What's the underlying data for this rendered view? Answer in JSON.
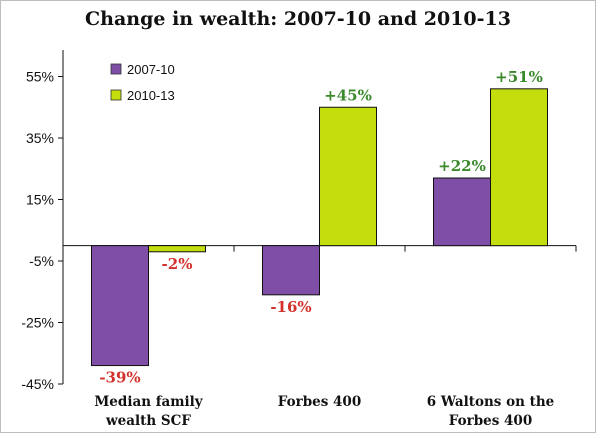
{
  "chart_data": {
    "type": "bar",
    "title": "Change in wealth: 2007-10 and 2010-13",
    "categories": [
      [
        "Median family",
        "wealth SCF"
      ],
      [
        "Forbes 400"
      ],
      [
        "6 Waltons on the",
        "Forbes 400"
      ]
    ],
    "series": [
      {
        "name": "2007-10",
        "values": [
          -39,
          -16,
          22
        ],
        "labels": [
          "-39%",
          "-16%",
          "+22%"
        ],
        "color": "#7f4fa8"
      },
      {
        "name": "2010-13",
        "values": [
          -2,
          45,
          51
        ],
        "labels": [
          "-2%",
          "+45%",
          "+51%"
        ],
        "color": "#c3dd0d"
      }
    ],
    "y_ticks": [
      55,
      35,
      15,
      -5,
      -25,
      -45
    ],
    "y_tick_labels": [
      "55%",
      "35%",
      "15%",
      "-5%",
      "-25%",
      "-45%"
    ],
    "ylim": [
      -45,
      62
    ],
    "legend_position": "top-left",
    "grid": false,
    "label_colors": {
      "positive": "#3a8a2c",
      "negative": "#d2322b"
    }
  }
}
